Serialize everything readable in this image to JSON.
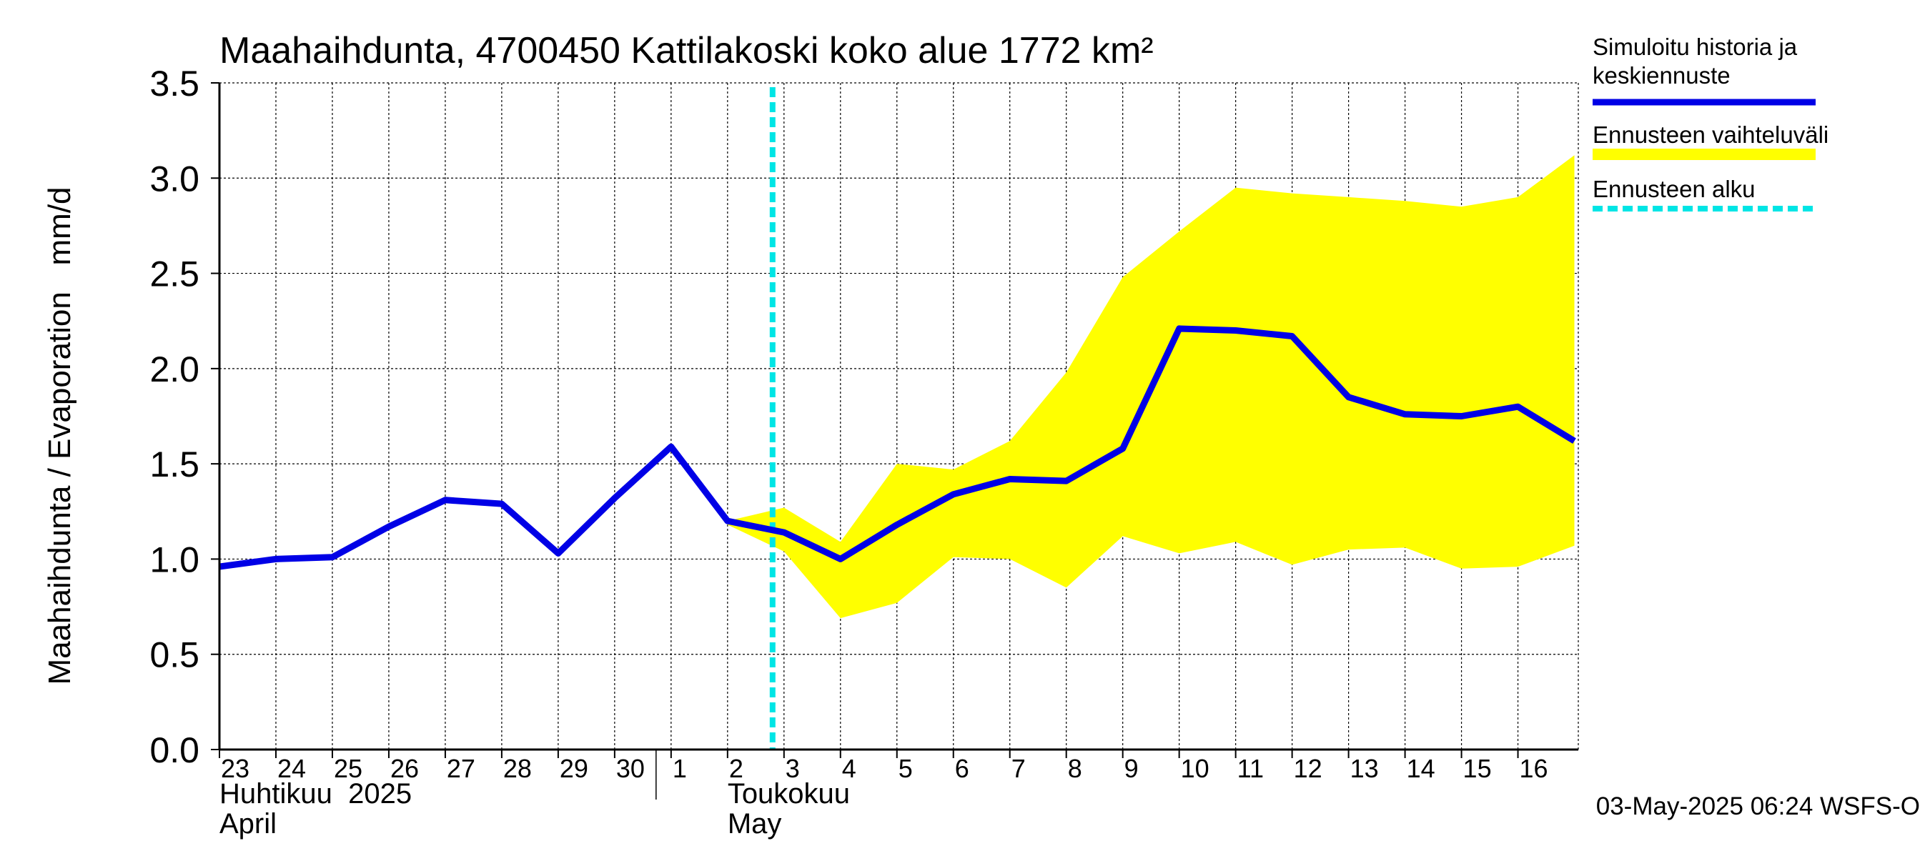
{
  "chart_data": {
    "type": "line",
    "title": "Maahaihdunta, 4700450 Kattilakoski koko alue 1772 km²",
    "ylabel": "Maahaihdunta / Evaporation   mm/d",
    "ylim": [
      0,
      3.5
    ],
    "yticks": [
      "0.0",
      "0.5",
      "1.0",
      "1.5",
      "2.0",
      "2.5",
      "3.0",
      "3.5"
    ],
    "xlim": [
      "2025-04-23",
      "2025-05-16"
    ],
    "xticks": [
      "23",
      "24",
      "25",
      "26",
      "27",
      "28",
      "29",
      "30",
      "1",
      "2",
      "3",
      "4",
      "5",
      "6",
      "7",
      "8",
      "9",
      "10",
      "11",
      "12",
      "13",
      "14",
      "15",
      "16"
    ],
    "month_labels": [
      {
        "fi": "Huhtikuu  2025",
        "en": "April",
        "start": "2025-04-23"
      },
      {
        "fi": "Toukokuu",
        "en": "May",
        "start": "2025-05-02"
      }
    ],
    "grid": true,
    "forecast_start": "2025-05-03",
    "series": [
      {
        "name": "Simuloitu historia ja keskiennuste",
        "color": "#0000e6",
        "x": [
          "2025-04-23",
          "2025-04-24",
          "2025-04-25",
          "2025-04-26",
          "2025-04-27",
          "2025-04-28",
          "2025-04-29",
          "2025-04-30",
          "2025-05-01",
          "2025-05-02",
          "2025-05-03",
          "2025-05-04",
          "2025-05-05",
          "2025-05-06",
          "2025-05-07",
          "2025-05-08",
          "2025-05-09",
          "2025-05-10",
          "2025-05-11",
          "2025-05-12",
          "2025-05-13",
          "2025-05-14",
          "2025-05-15",
          "2025-05-16",
          "2025-05-17"
        ],
        "values": [
          0.96,
          1.0,
          1.01,
          1.17,
          1.31,
          1.29,
          1.03,
          1.32,
          1.59,
          1.2,
          1.14,
          1.0,
          1.18,
          1.34,
          1.42,
          1.41,
          1.58,
          2.21,
          2.2,
          2.17,
          1.85,
          1.76,
          1.75,
          1.8,
          1.62
        ]
      },
      {
        "name": "Ennusteen vaihteluväli",
        "color": "#ffff00",
        "x": [
          "2025-05-02",
          "2025-05-03",
          "2025-05-04",
          "2025-05-05",
          "2025-05-06",
          "2025-05-07",
          "2025-05-08",
          "2025-05-09",
          "2025-05-10",
          "2025-05-11",
          "2025-05-12",
          "2025-05-13",
          "2025-05-14",
          "2025-05-15",
          "2025-05-16",
          "2025-05-17"
        ],
        "lower": [
          1.18,
          1.04,
          0.69,
          0.77,
          1.01,
          1.0,
          0.85,
          1.12,
          1.03,
          1.09,
          0.97,
          1.05,
          1.06,
          0.95,
          0.96,
          1.07
        ],
        "upper": [
          1.2,
          1.27,
          1.09,
          1.5,
          1.47,
          1.62,
          1.98,
          2.48,
          2.72,
          2.95,
          2.92,
          2.9,
          2.88,
          2.85,
          2.9,
          3.12
        ]
      }
    ],
    "legend": {
      "position": "right",
      "items": [
        {
          "label_lines": [
            "Simuloitu historia ja",
            "keskiennuste"
          ],
          "color": "#0000e6",
          "style": "solid"
        },
        {
          "label_lines": [
            "Ennusteen vaihteluväli"
          ],
          "color": "#ffff00",
          "style": "band"
        },
        {
          "label_lines": [
            "Ennusteen alku"
          ],
          "color": "#00e5e5",
          "style": "dashed"
        }
      ]
    },
    "footer": "03-May-2025 06:24 WSFS-O"
  }
}
